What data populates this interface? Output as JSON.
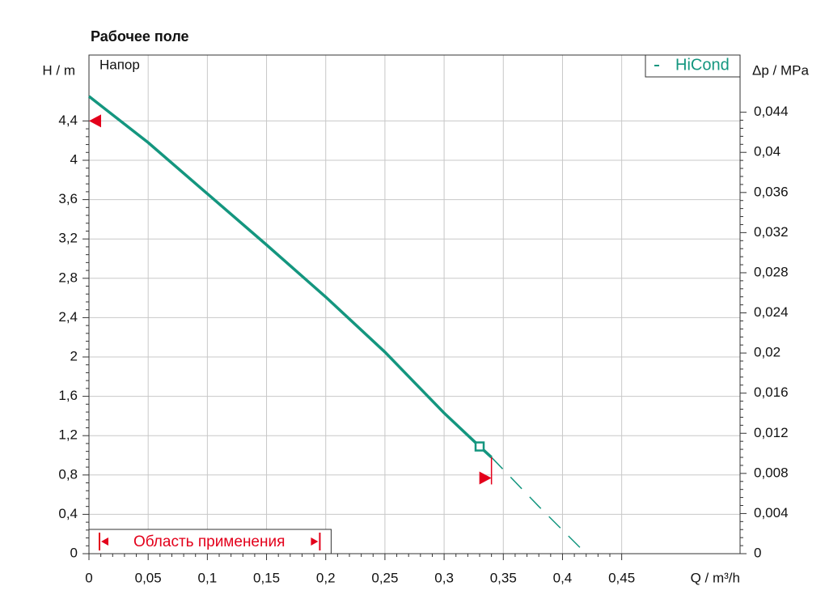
{
  "chart_data": {
    "type": "line",
    "title": "Рабочее поле",
    "ylabel": "H / m",
    "y2label": "Δp / MPa",
    "xlabel": "Q / m³/h",
    "panel_label": "Напор",
    "range_label": "Область применения",
    "range": [
      0,
      0.195
    ],
    "xlim": [
      0,
      0.55
    ],
    "ylim": [
      0,
      5.07
    ],
    "y2lim": [
      0,
      0.0497
    ],
    "xticks": [
      0,
      {
        "value": 0.05,
        "label": "0,05"
      },
      {
        "value": 0.1,
        "label": "0,1"
      },
      {
        "value": 0.15,
        "label": "0,15"
      },
      {
        "value": 0.2,
        "label": "0,2"
      },
      {
        "value": 0.25,
        "label": "0,25"
      },
      {
        "value": 0.3,
        "label": "0,3"
      },
      {
        "value": 0.35,
        "label": "0,35"
      },
      {
        "value": 0.4,
        "label": "0,4"
      },
      {
        "value": 0.45,
        "label": "0,45"
      }
    ],
    "yticks": [
      0,
      {
        "value": 0.4,
        "label": "0,4"
      },
      {
        "value": 0.8,
        "label": "0,8"
      },
      {
        "value": 1.2,
        "label": "1,2"
      },
      {
        "value": 1.6,
        "label": "1,6"
      },
      2,
      {
        "value": 2.4,
        "label": "2,4"
      },
      {
        "value": 2.8,
        "label": "2,8"
      },
      {
        "value": 3.2,
        "label": "3,2"
      },
      {
        "value": 3.6,
        "label": "3,6"
      },
      4,
      {
        "value": 4.4,
        "label": "4,4"
      }
    ],
    "y2ticks": [
      0,
      {
        "value": 0.004,
        "label": "0,004"
      },
      {
        "value": 0.008,
        "label": "0,008"
      },
      {
        "value": 0.012,
        "label": "0,012"
      },
      {
        "value": 0.016,
        "label": "0,016"
      },
      {
        "value": 0.02,
        "label": "0,02"
      },
      {
        "value": 0.024,
        "label": "0,024"
      },
      {
        "value": 0.028,
        "label": "0,028"
      },
      {
        "value": 0.032,
        "label": "0,032"
      },
      {
        "value": 0.036,
        "label": "0,036"
      },
      {
        "value": 0.04,
        "label": "0,04"
      },
      {
        "value": 0.044,
        "label": "0,044"
      }
    ],
    "grid": true,
    "series": [
      {
        "name": "HiCond",
        "color": "#14967f",
        "style": "solid",
        "x": [
          0,
          0.05,
          0.1,
          0.15,
          0.2,
          0.25,
          0.3,
          0.33,
          0.34
        ],
        "values": [
          4.65,
          4.18,
          3.66,
          3.14,
          2.61,
          2.05,
          1.43,
          1.09,
          0.98
        ]
      },
      {
        "color": "#14967f",
        "style": "dashed",
        "x": [
          0.34,
          0.38,
          0.42
        ],
        "values": [
          0.98,
          0.48,
          0
        ]
      }
    ],
    "operating_point": {
      "x": 0.33,
      "y": 1.09
    },
    "limit_markers": [
      {
        "x": 0,
        "y": 4.4
      },
      {
        "x": 0.34,
        "y": 0.77
      }
    ],
    "marker_color": "#e3001b"
  }
}
